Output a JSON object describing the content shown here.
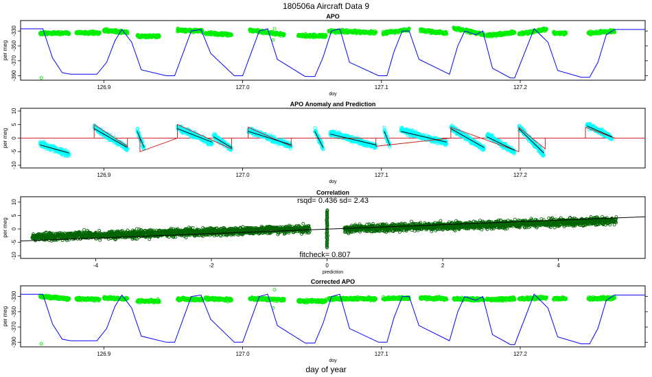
{
  "page": {
    "title": "180506a   Aircraft Data 9",
    "bottom_xlabel": "day of year"
  },
  "colors": {
    "green": "#00ee00",
    "cyan": "#00ffff",
    "darkgreen": "#006400",
    "blue": "#0000ff",
    "red": "#cc2222",
    "black": "#000000"
  },
  "chart_data": [
    {
      "id": "apo",
      "type": "scatter",
      "title": "APO",
      "xlabel": "doy",
      "ylabel": "per meg",
      "xlim": [
        126.84,
        127.29
      ],
      "ylim": [
        -396,
        -316
      ],
      "xticks": [
        126.9,
        127.0,
        127.1,
        127.2
      ],
      "xtick_labels": [
        "126.9",
        "127.0",
        "127.1",
        "127.2"
      ],
      "yticks": [
        -330,
        -350,
        -370,
        -390
      ],
      "ytick_labels": [
        "-330",
        "-350",
        "-370",
        "-390"
      ],
      "points_series": {
        "name": "APO observations",
        "color": "#00ee00",
        "segments": [
          {
            "x0": 126.854,
            "x1": 126.875,
            "y0": -333,
            "y1": -333
          },
          {
            "x0": 126.88,
            "x1": 126.897,
            "y0": -332,
            "y1": -333
          },
          {
            "x0": 126.9,
            "x1": 126.917,
            "y0": -329,
            "y1": -332
          },
          {
            "x0": 126.924,
            "x1": 126.94,
            "y0": -337,
            "y1": -337
          },
          {
            "x0": 126.953,
            "x1": 126.971,
            "y0": -329,
            "y1": -330
          },
          {
            "x0": 126.973,
            "x1": 126.992,
            "y0": -333,
            "y1": -335
          },
          {
            "x0": 127.005,
            "x1": 127.03,
            "y0": -329,
            "y1": -335
          },
          {
            "x0": 127.04,
            "x1": 127.06,
            "y0": -336,
            "y1": -337
          },
          {
            "x0": 127.062,
            "x1": 127.096,
            "y0": -330,
            "y1": -332
          },
          {
            "x0": 127.101,
            "x1": 127.12,
            "y0": -333,
            "y1": -328
          },
          {
            "x0": 127.128,
            "x1": 127.147,
            "y0": -329,
            "y1": -333
          },
          {
            "x0": 127.152,
            "x1": 127.174,
            "y0": -326,
            "y1": -335
          },
          {
            "x0": 127.176,
            "x1": 127.196,
            "y0": -336,
            "y1": -332
          },
          {
            "x0": 127.199,
            "x1": 127.219,
            "y0": -334,
            "y1": -328
          },
          {
            "x0": 127.224,
            "x1": 127.233,
            "y0": -333,
            "y1": -333
          },
          {
            "x0": 127.249,
            "x1": 127.268,
            "y0": -333,
            "y1": -330
          }
        ],
        "outliers": [
          [
            126.855,
            -393
          ],
          [
            127.023,
            -327
          ],
          [
            127.022,
            -342
          ]
        ]
      },
      "line_series": {
        "name": "model",
        "color": "#0000ff",
        "x": [
          126.84,
          126.856,
          126.863,
          126.87,
          126.876,
          126.895,
          126.902,
          126.908,
          126.913,
          126.92,
          126.927,
          126.945,
          126.951,
          126.957,
          126.963,
          126.97,
          126.977,
          126.994,
          127.0,
          127.006,
          127.012,
          127.018,
          127.025,
          127.045,
          127.052,
          127.058,
          127.064,
          127.07,
          127.077,
          127.098,
          127.104,
          127.109,
          127.115,
          127.12,
          127.127,
          127.149,
          127.155,
          127.16,
          127.168,
          127.173,
          127.18,
          127.193,
          127.196,
          127.203,
          127.21,
          127.22,
          127.227,
          127.244,
          127.25,
          127.256,
          127.262,
          127.268,
          127.29
        ],
        "y": [
          -327,
          -327,
          -366,
          -386,
          -388,
          -388,
          -372,
          -343,
          -328,
          -345,
          -382,
          -390,
          -390,
          -360,
          -330,
          -328,
          -360,
          -390,
          -390,
          -360,
          -330,
          -327,
          -368,
          -391,
          -391,
          -365,
          -330,
          -327,
          -372,
          -390,
          -390,
          -358,
          -330,
          -330,
          -368,
          -388,
          -350,
          -330,
          -335,
          -330,
          -380,
          -393,
          -393,
          -360,
          -327,
          -345,
          -383,
          -392,
          -392,
          -372,
          -335,
          -328,
          -328
        ]
      }
    },
    {
      "id": "anomaly",
      "type": "scatter",
      "title": "APO Anomaly and Prediction",
      "xlabel": "doy",
      "ylabel": "per meg",
      "xlim": [
        126.84,
        127.29
      ],
      "ylim": [
        -11,
        11
      ],
      "xticks": [
        126.9,
        127.0,
        127.1,
        127.2
      ],
      "xtick_labels": [
        "126.9",
        "127.0",
        "127.1",
        "127.2"
      ],
      "yticks": [
        10,
        5,
        0,
        -5,
        -10
      ],
      "ytick_labels": [
        "10",
        "5",
        "0",
        "-5",
        "-10"
      ],
      "points_series": {
        "name": "APO anomaly",
        "color": "#00ffff",
        "segments": [
          {
            "x0": 126.854,
            "x1": 126.875,
            "y0": -2,
            "y1": -6
          },
          {
            "x0": 126.893,
            "x1": 126.917,
            "y0": 4,
            "y1": -4
          },
          {
            "x0": 126.924,
            "x1": 126.929,
            "y0": 3,
            "y1": -4
          },
          {
            "x0": 126.953,
            "x1": 126.978,
            "y0": 4,
            "y1": -2
          },
          {
            "x0": 126.979,
            "x1": 126.992,
            "y0": 1,
            "y1": -4
          },
          {
            "x0": 127.004,
            "x1": 127.035,
            "y0": 3,
            "y1": -3
          },
          {
            "x0": 127.052,
            "x1": 127.058,
            "y0": 3,
            "y1": -4
          },
          {
            "x0": 127.063,
            "x1": 127.096,
            "y0": 2,
            "y1": -3
          },
          {
            "x0": 127.102,
            "x1": 127.106,
            "y0": 3,
            "y1": -3
          },
          {
            "x0": 127.114,
            "x1": 127.147,
            "y0": 3,
            "y1": -2
          },
          {
            "x0": 127.15,
            "x1": 127.174,
            "y0": 4,
            "y1": -4
          },
          {
            "x0": 127.176,
            "x1": 127.196,
            "y0": 1,
            "y1": -5
          },
          {
            "x0": 127.199,
            "x1": 127.217,
            "y0": 4,
            "y1": -6
          },
          {
            "x0": 127.248,
            "x1": 127.266,
            "y0": 5,
            "y1": 0
          }
        ]
      },
      "line_series": {
        "name": "prediction",
        "color": "#cc2222",
        "x": [
          126.84,
          126.893,
          126.893,
          126.917,
          126.917,
          126.926,
          126.926,
          126.953,
          126.953,
          126.992,
          126.992,
          127.004,
          127.004,
          127.035,
          127.035,
          127.096,
          127.096,
          127.15,
          127.15,
          127.199,
          127.199,
          127.218,
          127.218,
          127.247,
          127.247,
          127.268,
          127.268,
          127.29
        ],
        "y": [
          0,
          0,
          5,
          -3,
          0,
          0,
          -5,
          0,
          5,
          -4,
          0,
          0,
          4,
          -3,
          0,
          0,
          -3,
          0,
          4,
          -5,
          4,
          -4,
          0,
          0,
          4,
          0,
          0,
          0
        ]
      }
    },
    {
      "id": "correlation",
      "type": "scatter",
      "title": "Correlation",
      "xlabel": "prediction",
      "ylabel": "per meg",
      "xlim": [
        -5.3,
        5.5
      ],
      "ylim": [
        -11,
        12
      ],
      "xticks": [
        -4,
        -2,
        0,
        2,
        4
      ],
      "xtick_labels": [
        "-4",
        "-2",
        "0",
        "2",
        "4"
      ],
      "yticks": [
        10,
        5,
        0,
        -5,
        -10
      ],
      "ytick_labels": [
        "10",
        "5",
        "0",
        "-5",
        "-10"
      ],
      "annotation_top": "rsqd= 0.436 sd= 2.43",
      "annotation_bottom": "fitcheck= 0.807",
      "points_series": {
        "name": "anomaly vs prediction",
        "color": "#006400",
        "segments": [
          {
            "x0": -5.1,
            "x1": -0.3,
            "y0": -3,
            "y1": 0
          },
          {
            "x0": 0.3,
            "x1": 5.0,
            "y0": 0,
            "y1": 3
          }
        ],
        "vertical_cluster": {
          "x": 0,
          "y0": -7,
          "y1": 7
        }
      },
      "line_series": {
        "name": "fit",
        "color": "#000000",
        "x": [
          -5.3,
          5.5
        ],
        "y": [
          -4.5,
          4.5
        ]
      }
    },
    {
      "id": "corrected",
      "type": "scatter",
      "title": "Corrected APO",
      "xlabel": "doy",
      "ylabel": "per meg",
      "xlim": [
        126.84,
        127.29
      ],
      "ylim": [
        -396,
        -316
      ],
      "xticks": [
        126.9,
        127.0,
        127.1,
        127.2
      ],
      "xtick_labels": [
        "126.9",
        "127.0",
        "127.1",
        "127.2"
      ],
      "yticks": [
        -330,
        -350,
        -370,
        -390
      ],
      "ytick_labels": [
        "-330",
        "-350",
        "-370",
        "-390"
      ],
      "bottom_label": "day of year",
      "points_series": {
        "name": "corrected APO",
        "color": "#00ee00",
        "segments": [
          {
            "x0": 126.854,
            "x1": 126.875,
            "y0": -330,
            "y1": -333
          },
          {
            "x0": 126.88,
            "x1": 126.897,
            "y0": -333,
            "y1": -334
          },
          {
            "x0": 126.9,
            "x1": 126.917,
            "y0": -332,
            "y1": -333
          },
          {
            "x0": 126.924,
            "x1": 126.94,
            "y0": -336,
            "y1": -336
          },
          {
            "x0": 126.953,
            "x1": 126.971,
            "y0": -333,
            "y1": -334
          },
          {
            "x0": 126.973,
            "x1": 126.992,
            "y0": -333,
            "y1": -334
          },
          {
            "x0": 127.005,
            "x1": 127.03,
            "y0": -333,
            "y1": -334
          },
          {
            "x0": 127.04,
            "x1": 127.06,
            "y0": -336,
            "y1": -336
          },
          {
            "x0": 127.062,
            "x1": 127.096,
            "y0": -333,
            "y1": -333
          },
          {
            "x0": 127.101,
            "x1": 127.12,
            "y0": -333,
            "y1": -332
          },
          {
            "x0": 127.128,
            "x1": 127.147,
            "y0": -332,
            "y1": -333
          },
          {
            "x0": 127.152,
            "x1": 127.174,
            "y0": -333,
            "y1": -334
          },
          {
            "x0": 127.176,
            "x1": 127.196,
            "y0": -334,
            "y1": -333
          },
          {
            "x0": 127.199,
            "x1": 127.219,
            "y0": -333,
            "y1": -332
          },
          {
            "x0": 127.224,
            "x1": 127.233,
            "y0": -333,
            "y1": -333
          },
          {
            "x0": 127.249,
            "x1": 127.268,
            "y0": -333,
            "y1": -332
          }
        ],
        "outliers": [
          [
            126.855,
            -392
          ],
          [
            127.023,
            -321
          ],
          [
            127.022,
            -345
          ]
        ]
      },
      "line_series": {
        "name": "model",
        "color": "#0000ff",
        "x": [
          126.84,
          126.856,
          126.863,
          126.87,
          126.876,
          126.895,
          126.902,
          126.908,
          126.913,
          126.92,
          126.927,
          126.945,
          126.951,
          126.957,
          126.963,
          126.97,
          126.977,
          126.994,
          127.0,
          127.006,
          127.012,
          127.018,
          127.025,
          127.045,
          127.052,
          127.058,
          127.064,
          127.07,
          127.077,
          127.098,
          127.104,
          127.109,
          127.115,
          127.12,
          127.127,
          127.149,
          127.155,
          127.16,
          127.168,
          127.173,
          127.18,
          127.193,
          127.196,
          127.203,
          127.21,
          127.22,
          127.227,
          127.244,
          127.25,
          127.256,
          127.262,
          127.268,
          127.29
        ],
        "y": [
          -327,
          -327,
          -366,
          -386,
          -388,
          -388,
          -372,
          -343,
          -328,
          -345,
          -382,
          -390,
          -390,
          -360,
          -330,
          -328,
          -360,
          -390,
          -390,
          -360,
          -330,
          -327,
          -368,
          -391,
          -391,
          -365,
          -330,
          -327,
          -372,
          -390,
          -390,
          -358,
          -330,
          -330,
          -368,
          -388,
          -350,
          -330,
          -335,
          -330,
          -380,
          -393,
          -393,
          -360,
          -327,
          -345,
          -383,
          -392,
          -392,
          -372,
          -335,
          -328,
          -328
        ]
      }
    }
  ]
}
